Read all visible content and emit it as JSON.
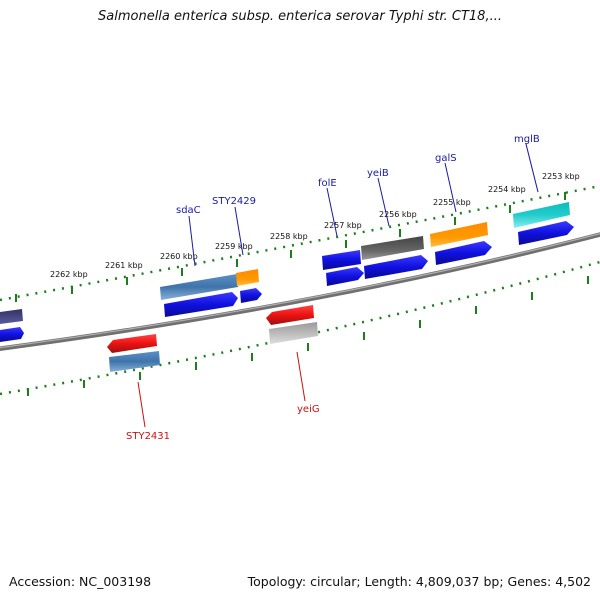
{
  "title": "Salmonella enterica subsp. enterica serovar Typhi str. CT18,...",
  "footer": {
    "accession": "Accession: NC_003198",
    "summary": "Topology: circular; Length: 4,809,037 bp; Genes: 4,502"
  },
  "kbp_labels": [
    "2262 kbp",
    "2261 kbp",
    "2260 kbp",
    "2259 kbp",
    "2258 kbp",
    "2257 kbp",
    "2256 kbp",
    "2255 kbp",
    "2254 kbp",
    "2253 kbp"
  ],
  "gene_labels_forward": [
    "sdaC",
    "STY2429",
    "folE",
    "yeiB",
    "galS",
    "mglB"
  ],
  "gene_labels_reverse": [
    "STY2431",
    "yeiG"
  ],
  "colors": {
    "backbone": "#808080",
    "ticks": "#1e7d1e",
    "cds": "#1010e0",
    "red_gene": "#ee1111",
    "steel_gene": "#4a7fb5",
    "orange_gene": "#ff9900",
    "gray_gene": "#555555",
    "cyan_gene": "#22cccc",
    "purple_gene": "#3a3a7a",
    "light_gene": "#aaaaaa"
  }
}
